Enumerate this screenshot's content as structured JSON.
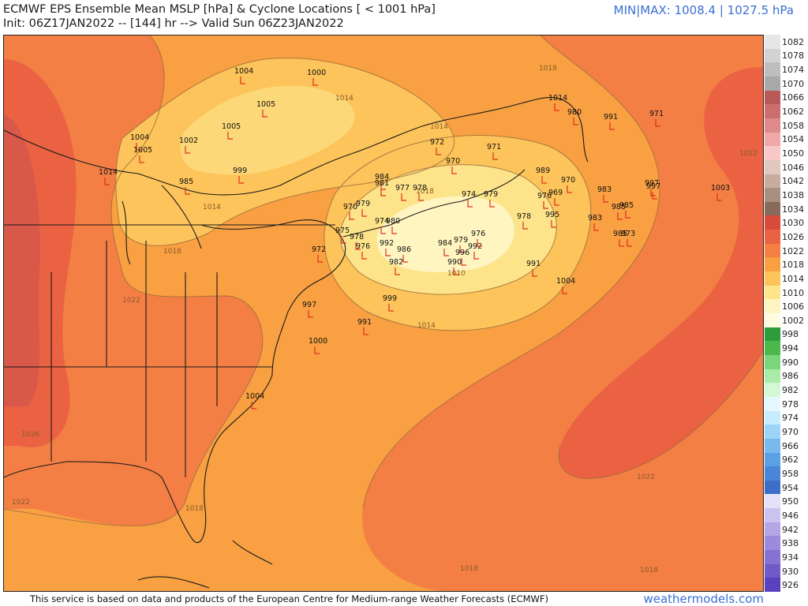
{
  "header": {
    "title": "ECMWF EPS Ensemble Mean MSLP [hPa] & Cyclone Locations [ < 1001 hPa]",
    "init": "Init: 06Z17JAN2022 -- [144] hr --> Valid Sun 06Z23JAN2022",
    "minmax": "MIN|MAX: 1008.4 | 1027.5 hPa"
  },
  "footer": {
    "credit": "This service is based on data and products of the European Centre for Medium-range Weather Forecasts (ECMWF)",
    "brand": "weathermodels.com"
  },
  "map": {
    "isobar_labels": [
      "1018",
      "1014",
      "1014",
      "1014",
      "1018",
      "1022",
      "1026",
      "1022",
      "1018",
      "1014",
      "1010",
      "1018",
      "1022",
      "1018",
      "1022",
      "1018"
    ],
    "cyclone_labels": [
      "1004",
      "1000",
      "1005",
      "1005",
      "1004",
      "1005",
      "1002",
      "985",
      "999",
      "1014",
      "972",
      "971",
      "970",
      "984",
      "981",
      "977",
      "978",
      "970",
      "974",
      "979",
      "978",
      "989",
      "970",
      "969",
      "976",
      "983",
      "985",
      "985",
      "995",
      "983",
      "997",
      "1003",
      "971",
      "991",
      "980",
      "975",
      "979",
      "974",
      "980",
      "978",
      "976",
      "992",
      "986",
      "984",
      "979",
      "992",
      "996",
      "976",
      "990",
      "982",
      "991",
      "1004",
      "997",
      "999",
      "991",
      "1000",
      "1004",
      "972",
      "973",
      "997",
      "985",
      "1014"
    ]
  },
  "colorscale": {
    "labels": [
      "1082",
      "1078",
      "1074",
      "1070",
      "1066",
      "1062",
      "1058",
      "1054",
      "1050",
      "1046",
      "1042",
      "1038",
      "1034",
      "1030",
      "1026",
      "1022",
      "1018",
      "1014",
      "1010",
      "1006",
      "1002",
      "998",
      "994",
      "990",
      "986",
      "982",
      "978",
      "974",
      "970",
      "966",
      "962",
      "958",
      "954",
      "950",
      "946",
      "942",
      "938",
      "934",
      "930",
      "926"
    ],
    "colors": [
      "#e6e6e6",
      "#d2d2d2",
      "#bdbdbd",
      "#a8a8a8",
      "#b85a5a",
      "#cc6e6e",
      "#de8a8a",
      "#f0a8a8",
      "#f8c8c8",
      "#e0c8c0",
      "#c8aca0",
      "#a89080",
      "#886a5a",
      "#d84a3a",
      "#ea6242",
      "#f37f45",
      "#f8a042",
      "#fcc45a",
      "#fde38a",
      "#fff5c0",
      "#fffbe0",
      "#2e9c3a",
      "#4cb84c",
      "#7ad67a",
      "#a8eca8",
      "#d4f8d4",
      "#e6f8ff",
      "#c8ecff",
      "#9cd4f8",
      "#78baee",
      "#5aa0e4",
      "#4a86d8",
      "#3c6ec8",
      "#e6e0f8",
      "#ccc2f0",
      "#b4a6e6",
      "#9c8adc",
      "#8672d2",
      "#705ac8",
      "#5a42be"
    ]
  },
  "colors": {
    "brand": "#3b6fd4",
    "cyclone_marker": "#e03020",
    "coast": "#1a1a1a"
  }
}
